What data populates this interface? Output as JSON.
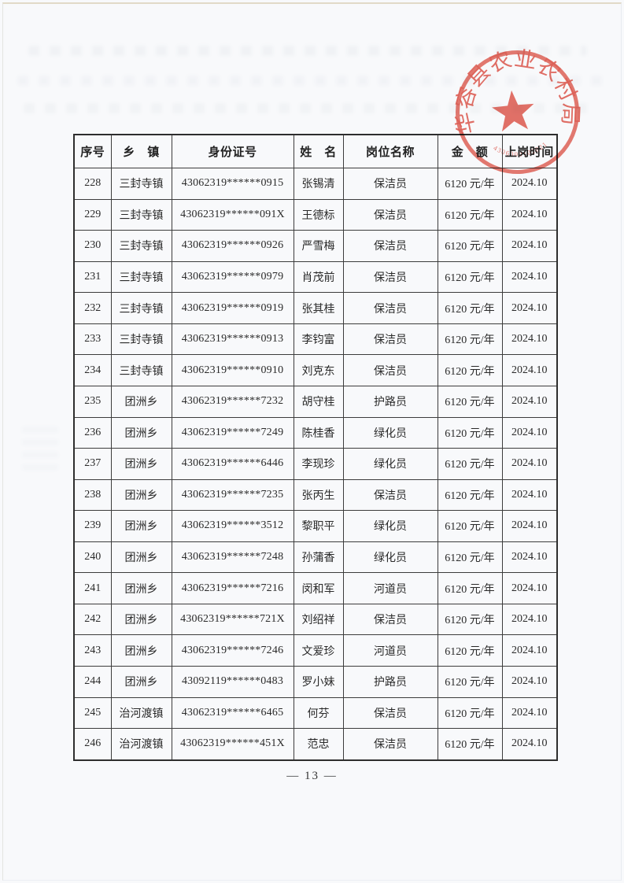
{
  "seal": {
    "text": "华容县农业农村局",
    "serial": "4306000102021",
    "color": "#e2564a"
  },
  "table": {
    "headers": [
      "序号",
      "乡　镇",
      "身份证号",
      "姓　名",
      "岗位名称",
      "金　额",
      "上岗时间"
    ],
    "rows": [
      [
        "228",
        "三封寺镇",
        "43062319******0915",
        "张锡清",
        "保洁员",
        "6120 元/年",
        "2024.10"
      ],
      [
        "229",
        "三封寺镇",
        "43062319******091X",
        "王德标",
        "保洁员",
        "6120 元/年",
        "2024.10"
      ],
      [
        "230",
        "三封寺镇",
        "43062319******0926",
        "严雪梅",
        "保洁员",
        "6120 元/年",
        "2024.10"
      ],
      [
        "231",
        "三封寺镇",
        "43062319******0979",
        "肖茂前",
        "保洁员",
        "6120 元/年",
        "2024.10"
      ],
      [
        "232",
        "三封寺镇",
        "43062319******0919",
        "张其桂",
        "保洁员",
        "6120 元/年",
        "2024.10"
      ],
      [
        "233",
        "三封寺镇",
        "43062319******0913",
        "李钧富",
        "保洁员",
        "6120 元/年",
        "2024.10"
      ],
      [
        "234",
        "三封寺镇",
        "43062319******0910",
        "刘克东",
        "保洁员",
        "6120 元/年",
        "2024.10"
      ],
      [
        "235",
        "团洲乡",
        "43062319******7232",
        "胡守桂",
        "护路员",
        "6120 元/年",
        "2024.10"
      ],
      [
        "236",
        "团洲乡",
        "43062319******7249",
        "陈桂香",
        "绿化员",
        "6120 元/年",
        "2024.10"
      ],
      [
        "237",
        "团洲乡",
        "43062319******6446",
        "李现珍",
        "绿化员",
        "6120 元/年",
        "2024.10"
      ],
      [
        "238",
        "团洲乡",
        "43062319******7235",
        "张丙生",
        "保洁员",
        "6120 元/年",
        "2024.10"
      ],
      [
        "239",
        "团洲乡",
        "43062319******3512",
        "黎职平",
        "绿化员",
        "6120 元/年",
        "2024.10"
      ],
      [
        "240",
        "团洲乡",
        "43062319******7248",
        "孙蒲香",
        "绿化员",
        "6120 元/年",
        "2024.10"
      ],
      [
        "241",
        "团洲乡",
        "43062319******7216",
        "闵和军",
        "河道员",
        "6120 元/年",
        "2024.10"
      ],
      [
        "242",
        "团洲乡",
        "43062319******721X",
        "刘绍祥",
        "保洁员",
        "6120 元/年",
        "2024.10"
      ],
      [
        "243",
        "团洲乡",
        "43062319******7246",
        "文爱珍",
        "河道员",
        "6120 元/年",
        "2024.10"
      ],
      [
        "244",
        "团洲乡",
        "43092119******0483",
        "罗小妹",
        "护路员",
        "6120 元/年",
        "2024.10"
      ],
      [
        "245",
        "治河渡镇",
        "43062319******6465",
        "何芬",
        "保洁员",
        "6120 元/年",
        "2024.10"
      ],
      [
        "246",
        "治河渡镇",
        "43062319******451X",
        "范忠",
        "保洁员",
        "6120 元/年",
        "2024.10"
      ]
    ]
  },
  "footer": {
    "page_number": "— 13 —"
  }
}
